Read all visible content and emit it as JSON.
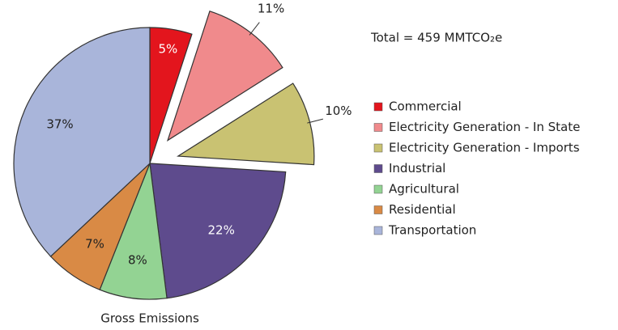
{
  "chart_data": {
    "type": "pie",
    "title": "Total = 459 MMTCO₂e",
    "caption": "Gross Emissions",
    "categories": [
      "Commercial",
      "Electricity Generation - In State",
      "Electricity Generation - Imports",
      "Industrial",
      "Agricultural",
      "Residential",
      "Transportation"
    ],
    "values": [
      5,
      11,
      10,
      22,
      8,
      7,
      37
    ],
    "value_labels": [
      "5%",
      "11%",
      "10%",
      "22%",
      "8%",
      "7%",
      "37%"
    ],
    "colors": [
      "#e3151d",
      "#f08a8c",
      "#c9c272",
      "#5e4b8d",
      "#93d393",
      "#d98a45",
      "#a9b5da"
    ],
    "exploded": [
      false,
      true,
      true,
      false,
      false,
      false,
      false
    ],
    "legend": "right"
  }
}
